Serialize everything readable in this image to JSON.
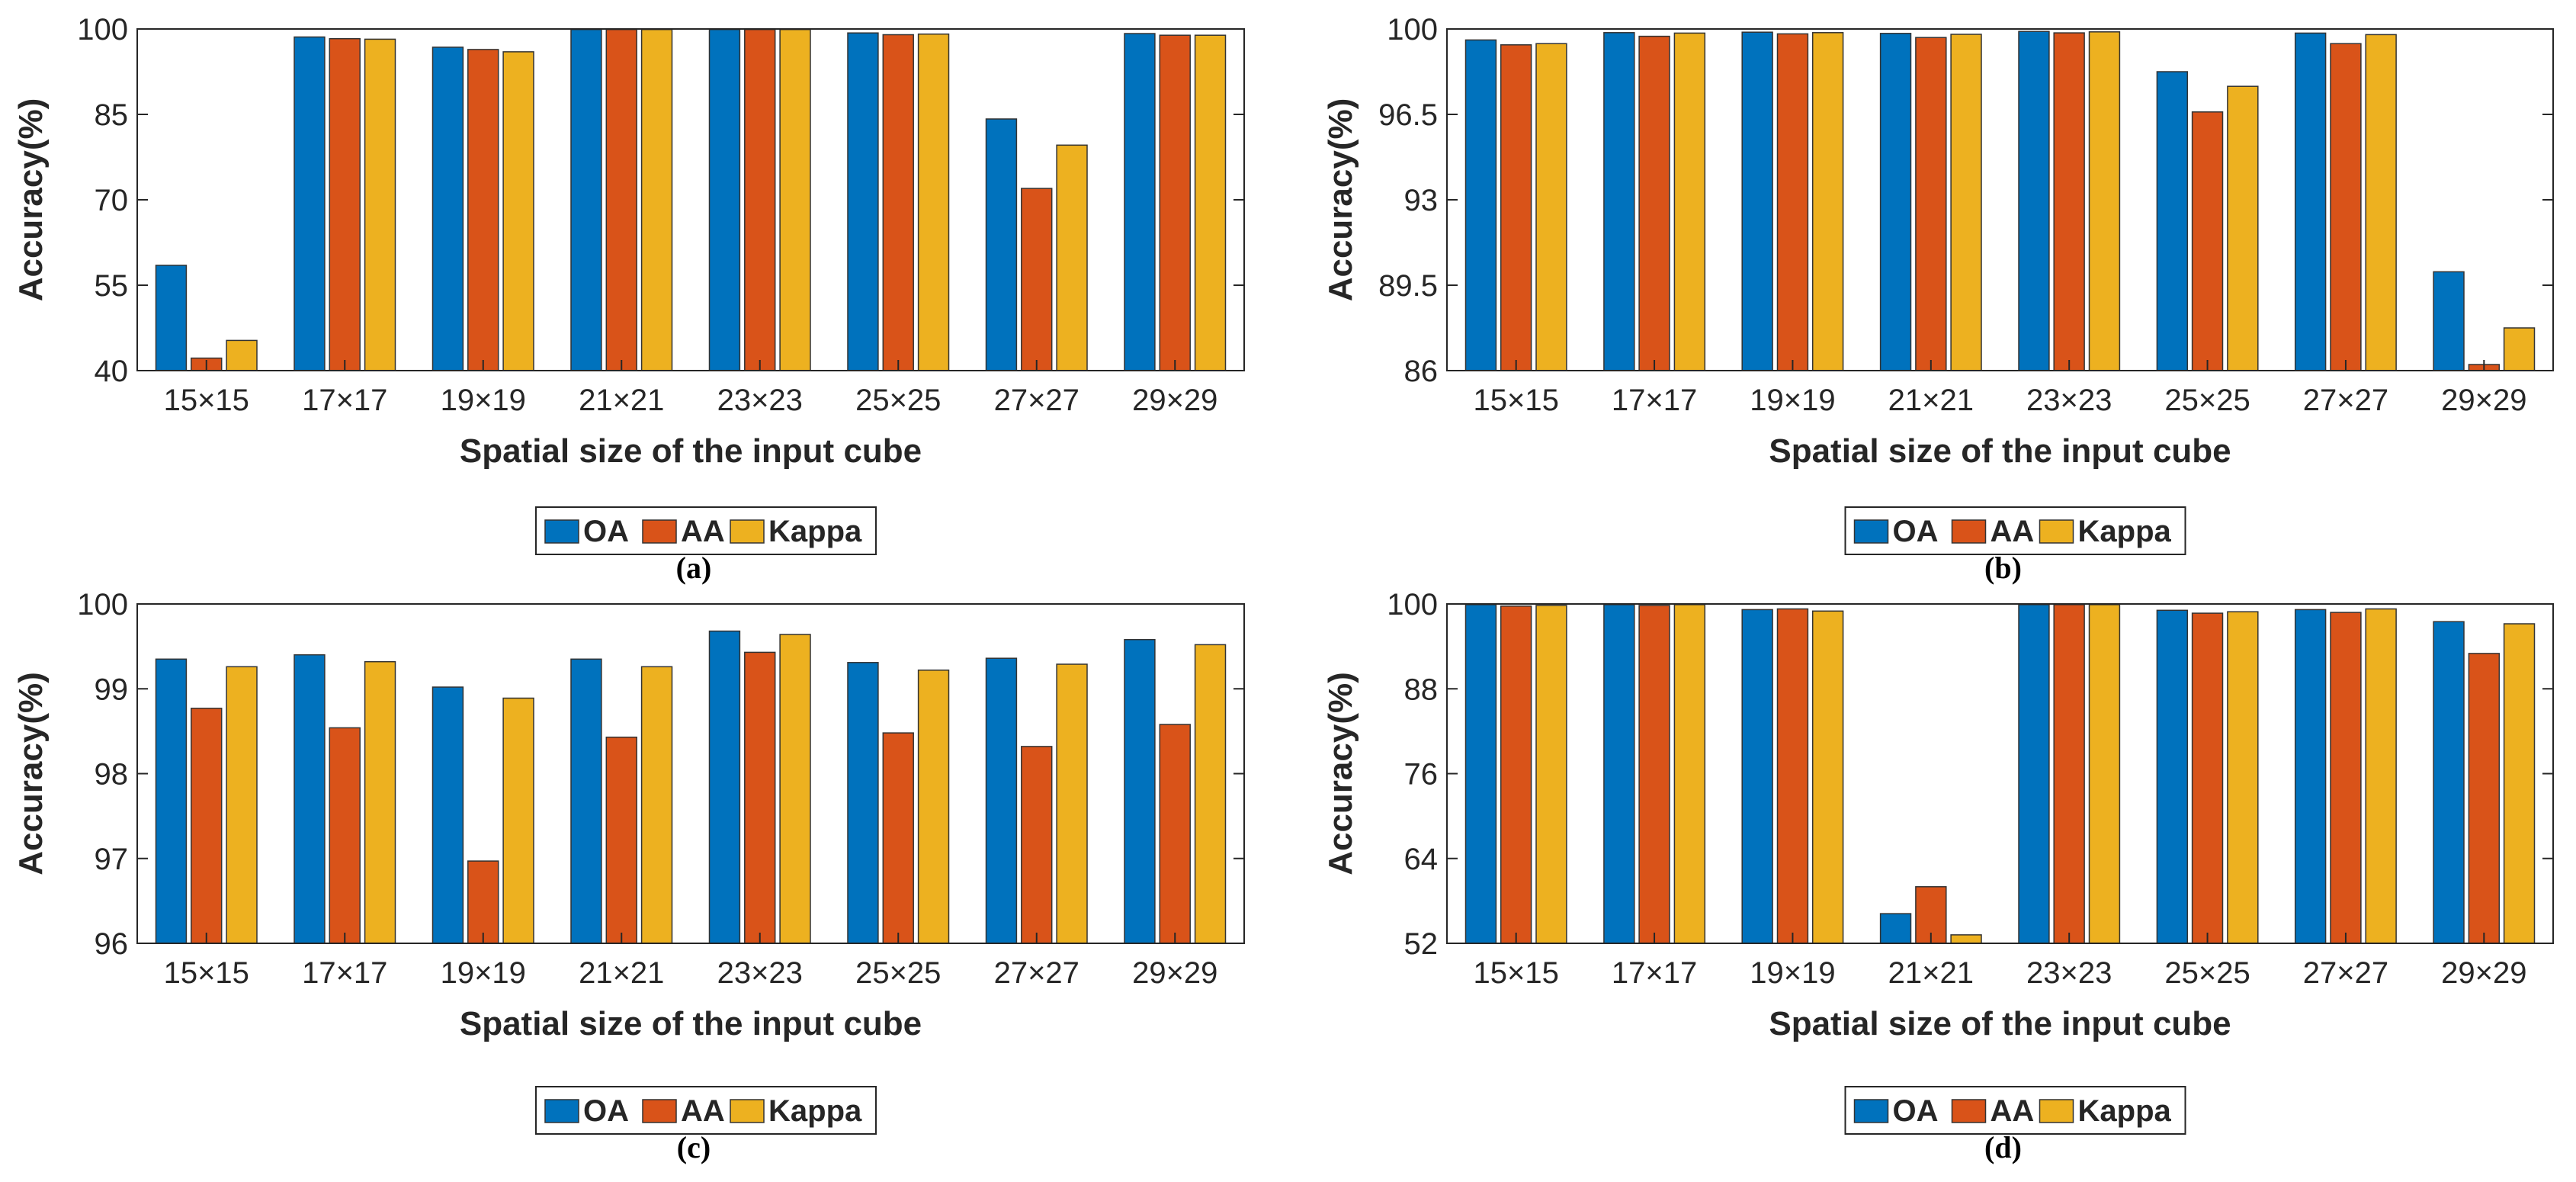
{
  "colors": {
    "OA": "#0072BD",
    "AA": "#D95319",
    "Kappa": "#EDB120",
    "axis": "#262626",
    "bar_edge": "#333333"
  },
  "chart_data": [
    {
      "type": "bar",
      "panel_label": "(a)",
      "categories": [
        "15×15",
        "17×17",
        "19×19",
        "21×21",
        "23×23",
        "25×25",
        "27×27",
        "29×29"
      ],
      "series": [
        {
          "name": "OA",
          "values": [
            58.5,
            98.6,
            96.8,
            99.9,
            99.9,
            99.3,
            84.2,
            99.2
          ]
        },
        {
          "name": "AA",
          "values": [
            42.2,
            98.3,
            96.4,
            99.9,
            99.9,
            99.0,
            72.0,
            98.9
          ]
        },
        {
          "name": "Kappa",
          "values": [
            45.3,
            98.2,
            96.0,
            99.9,
            99.9,
            99.1,
            79.6,
            98.9
          ]
        }
      ],
      "ylim": [
        40,
        100
      ],
      "yticks": [
        "40",
        "55",
        "70",
        "85",
        "100"
      ],
      "xlabel": "Spatial size of the input cube",
      "ylabel": "Accuracy(%)",
      "legend": [
        "OA",
        "AA",
        "Kappa"
      ],
      "legend_position": "bottom"
    },
    {
      "type": "bar",
      "panel_label": "(b)",
      "categories": [
        "15×15",
        "17×17",
        "19×19",
        "21×21",
        "23×23",
        "25×25",
        "27×27",
        "29×29"
      ],
      "series": [
        {
          "name": "OA",
          "values": [
            99.55,
            99.85,
            99.87,
            99.82,
            99.9,
            98.25,
            99.83,
            90.05
          ]
        },
        {
          "name": "AA",
          "values": [
            99.35,
            99.7,
            99.8,
            99.65,
            99.84,
            96.6,
            99.4,
            86.25
          ]
        },
        {
          "name": "Kappa",
          "values": [
            99.4,
            99.83,
            99.85,
            99.78,
            99.88,
            97.65,
            99.77,
            87.75
          ]
        }
      ],
      "ylim": [
        86,
        100
      ],
      "yticks": [
        "86",
        "89.5",
        "93",
        "96.5",
        "100"
      ],
      "xlabel": "Spatial size of the input cube",
      "ylabel": "Accuracy(%)",
      "legend": [
        "OA",
        "AA",
        "Kappa"
      ],
      "legend_position": "bottom"
    },
    {
      "type": "bar",
      "panel_label": "(c)",
      "categories": [
        "15×15",
        "17×17",
        "19×19",
        "21×21",
        "23×23",
        "25×25",
        "27×27",
        "29×29"
      ],
      "series": [
        {
          "name": "OA",
          "values": [
            99.35,
            99.4,
            99.02,
            99.35,
            99.68,
            99.31,
            99.36,
            99.58
          ]
        },
        {
          "name": "AA",
          "values": [
            98.77,
            98.54,
            96.97,
            98.43,
            99.43,
            98.48,
            98.32,
            98.58
          ]
        },
        {
          "name": "Kappa",
          "values": [
            99.26,
            99.32,
            98.89,
            99.26,
            99.64,
            99.22,
            99.29,
            99.52
          ]
        }
      ],
      "ylim": [
        96,
        100
      ],
      "yticks": [
        "96",
        "97",
        "98",
        "99",
        "100"
      ],
      "xlabel": "Spatial size of the input cube",
      "ylabel": "Accuracy(%)",
      "legend": [
        "OA",
        "AA",
        "Kappa"
      ],
      "legend_position": "bottom"
    },
    {
      "type": "bar",
      "panel_label": "(d)",
      "categories": [
        "15×15",
        "17×17",
        "19×19",
        "21×21",
        "23×23",
        "25×25",
        "27×27",
        "29×29"
      ],
      "series": [
        {
          "name": "OA",
          "values": [
            99.9,
            99.9,
            99.2,
            56.2,
            99.9,
            99.1,
            99.2,
            97.5
          ]
        },
        {
          "name": "AA",
          "values": [
            99.7,
            99.8,
            99.3,
            60.0,
            99.9,
            98.7,
            98.8,
            93.0
          ]
        },
        {
          "name": "Kappa",
          "values": [
            99.8,
            99.9,
            99.0,
            53.2,
            99.9,
            98.9,
            99.3,
            97.2
          ]
        }
      ],
      "ylim": [
        52,
        100
      ],
      "yticks": [
        "52",
        "64",
        "76",
        "88",
        "100"
      ],
      "xlabel": "Spatial size of the input cube",
      "ylabel": "Accuracy(%)",
      "legend": [
        "OA",
        "AA",
        "Kappa"
      ],
      "legend_position": "bottom"
    }
  ]
}
